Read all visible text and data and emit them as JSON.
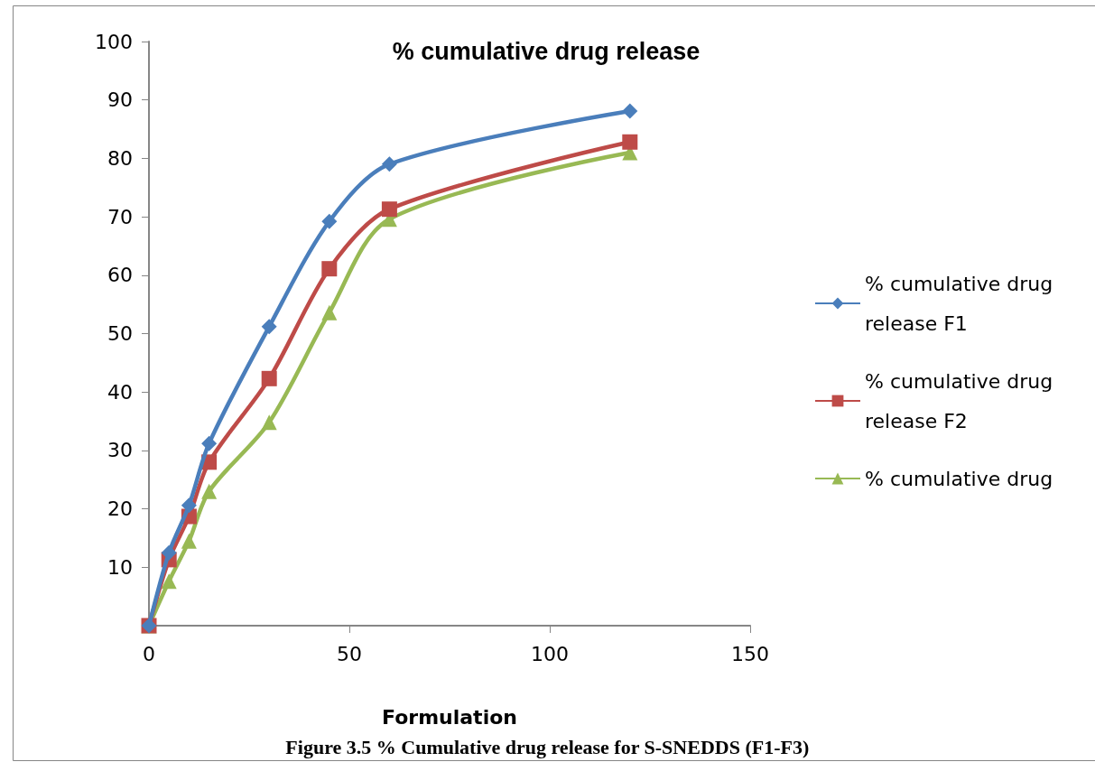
{
  "chart_data": {
    "type": "line",
    "title": "% cumulative drug release",
    "xlabel": "Formulation",
    "x": [
      0,
      5,
      10,
      15,
      30,
      45,
      60,
      120
    ],
    "series": [
      {
        "name": "% cumulative drug release F1",
        "color": "#4a7ebb",
        "marker": "diamond",
        "values": [
          0,
          12.5,
          20.6,
          31.2,
          51.2,
          69.2,
          79,
          88.1
        ]
      },
      {
        "name": "% cumulative drug release F2",
        "color": "#be4b48",
        "marker": "square",
        "values": [
          0,
          11.3,
          18.7,
          28,
          42.3,
          61.1,
          71.3,
          82.8
        ]
      },
      {
        "name": "% cumulative drug",
        "color": "#98b954",
        "marker": "triangle",
        "values": [
          0,
          7.6,
          14.5,
          23,
          34.8,
          53.6,
          69.6,
          81
        ]
      }
    ],
    "xlim": [
      0,
      150
    ],
    "xticks": [
      0,
      50,
      100,
      150
    ],
    "ylim": [
      0,
      100
    ],
    "yticks": [
      {
        "value": 0,
        "label": null
      },
      10,
      20,
      30,
      40,
      50,
      60,
      70,
      80,
      90,
      100
    ],
    "grid": false,
    "legend": "right",
    "line_style": "solid",
    "annotations": [
      "Figure 3.5 % Cumulative drug release for S-SNEDDS (F1-F3)"
    ]
  }
}
